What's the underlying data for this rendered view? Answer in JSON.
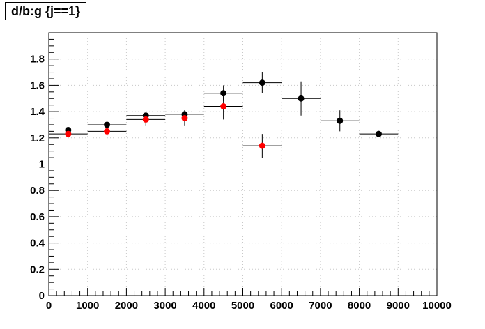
{
  "chart_data": {
    "type": "scatter",
    "title": "d/b:g {j==1}",
    "xlabel": "",
    "ylabel": "",
    "xlim": [
      0,
      10000
    ],
    "ylim": [
      0,
      2.0
    ],
    "grid": true,
    "x_ticks": [
      0,
      1000,
      2000,
      3000,
      4000,
      5000,
      6000,
      7000,
      8000,
      9000,
      10000
    ],
    "y_ticks": [
      0,
      0.2,
      0.4,
      0.6,
      0.8,
      1,
      1.2,
      1.4,
      1.6,
      1.8
    ],
    "series": [
      {
        "color": "#000000",
        "points": [
          {
            "x": 500,
            "y": 1.26,
            "xerr": 500,
            "yerr": 0.015
          },
          {
            "x": 1500,
            "y": 1.3,
            "xerr": 500,
            "yerr": 0.02
          },
          {
            "x": 2500,
            "y": 1.37,
            "xerr": 500,
            "yerr": 0.02
          },
          {
            "x": 3500,
            "y": 1.38,
            "xerr": 500,
            "yerr": 0.03
          },
          {
            "x": 4500,
            "y": 1.54,
            "xerr": 500,
            "yerr": 0.06
          },
          {
            "x": 5500,
            "y": 1.62,
            "xerr": 500,
            "yerr": 0.08
          },
          {
            "x": 6500,
            "y": 1.5,
            "xerr": 500,
            "yerr": 0.13
          },
          {
            "x": 7500,
            "y": 1.33,
            "xerr": 500,
            "yerr": 0.08
          },
          {
            "x": 8500,
            "y": 1.23,
            "xerr": 500,
            "yerr": 0.01
          }
        ]
      },
      {
        "color": "#ff0000",
        "points": [
          {
            "x": 500,
            "y": 1.23,
            "xerr": 500,
            "yerr": 0.02
          },
          {
            "x": 1500,
            "y": 1.25,
            "xerr": 500,
            "yerr": 0.035
          },
          {
            "x": 2500,
            "y": 1.34,
            "xerr": 500,
            "yerr": 0.05
          },
          {
            "x": 3500,
            "y": 1.35,
            "xerr": 500,
            "yerr": 0.06
          },
          {
            "x": 4500,
            "y": 1.44,
            "xerr": 500,
            "yerr": 0.1
          },
          {
            "x": 5500,
            "y": 1.14,
            "xerr": 500,
            "yerr": 0.09
          }
        ]
      }
    ]
  }
}
